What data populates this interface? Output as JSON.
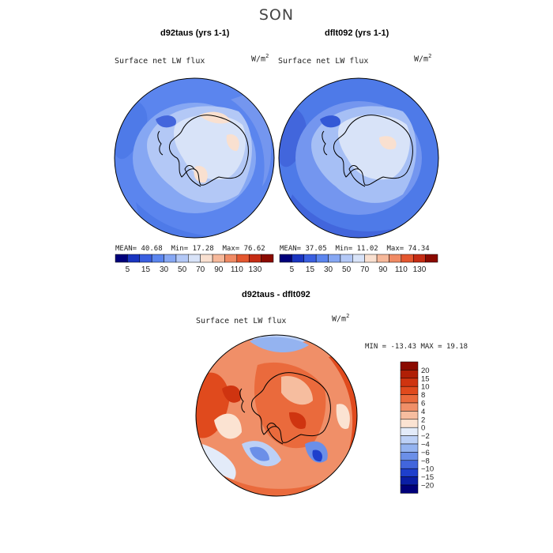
{
  "season": "SON",
  "panels": [
    {
      "title": "d92taus (yrs 1-1)",
      "variable": "Surface net LW flux",
      "unit_base": "W/m",
      "unit_exp": "2",
      "stats": {
        "mean_label": "MEAN=",
        "mean": "40.68",
        "min_label": "Min=",
        "min": "17.28",
        "max_label": "Max=",
        "max": "76.62"
      }
    },
    {
      "title": "dflt092 (yrs 1-1)",
      "variable": "Surface net LW flux",
      "unit_base": "W/m",
      "unit_exp": "2",
      "stats": {
        "mean_label": "MEAN=",
        "mean": "37.05",
        "min_label": "Min=",
        "min": "11.02",
        "max_label": "Max=",
        "max": "74.34"
      }
    }
  ],
  "diff_panel": {
    "title": "d92taus - dflt092",
    "variable": "Surface net LW flux",
    "unit_base": "W/m",
    "unit_exp": "2",
    "stats_line": "MIN = -13.43 MAX =  19.18"
  },
  "chart_data": [
    {
      "type": "heatmap",
      "title": "d92taus (yrs 1-1)",
      "subtitle": "Surface net LW flux",
      "units": "W/m2",
      "summary": {
        "mean": 40.68,
        "min": 17.28,
        "max": 76.62
      },
      "colorbar_levels": [
        5,
        15,
        30,
        50,
        70,
        90,
        110,
        130
      ],
      "colorbar_colors": [
        "#00007a",
        "#1a35c0",
        "#3a5fe0",
        "#5b85ee",
        "#86a7f3",
        "#b3c8f6",
        "#d8e3f8",
        "#f9e0d0",
        "#f6b89a",
        "#f08a64",
        "#e4572f",
        "#c52c14",
        "#8a0a00"
      ]
    },
    {
      "type": "heatmap",
      "title": "dflt092 (yrs 1-1)",
      "subtitle": "Surface net LW flux",
      "units": "W/m2",
      "summary": {
        "mean": 37.05,
        "min": 11.02,
        "max": 74.34
      },
      "colorbar_levels": [
        5,
        15,
        30,
        50,
        70,
        90,
        110,
        130
      ],
      "colorbar_colors": [
        "#00007a",
        "#1a35c0",
        "#3a5fe0",
        "#5b85ee",
        "#86a7f3",
        "#b3c8f6",
        "#d8e3f8",
        "#f9e0d0",
        "#f6b89a",
        "#f08a64",
        "#e4572f",
        "#c52c14",
        "#8a0a00"
      ]
    },
    {
      "type": "heatmap",
      "title": "d92taus - dflt092",
      "subtitle": "Surface net LW flux",
      "units": "W/m2",
      "summary": {
        "min": -13.43,
        "max": 19.18
      },
      "colorbar_levels": [
        20,
        15,
        10,
        8,
        6,
        4,
        2,
        0,
        -2,
        -4,
        -6,
        -8,
        -10,
        -15,
        -20
      ],
      "colorbar_labels": [
        "20",
        "15",
        "10",
        "8",
        "6",
        "4",
        "2",
        "0",
        "−2",
        "−4",
        "−6",
        "−8",
        "−10",
        "−15",
        "−20"
      ],
      "colorbar_colors": [
        "#8b0a00",
        "#b01f06",
        "#cf3410",
        "#e04a1d",
        "#ea6a3c",
        "#f08f68",
        "#f6bd9f",
        "#fbe3d2",
        "#e3ebf9",
        "#bcd0f6",
        "#94b3f0",
        "#6b8fe8",
        "#4266dc",
        "#1e3fcc",
        "#0a1ea5",
        "#00007a"
      ]
    }
  ]
}
